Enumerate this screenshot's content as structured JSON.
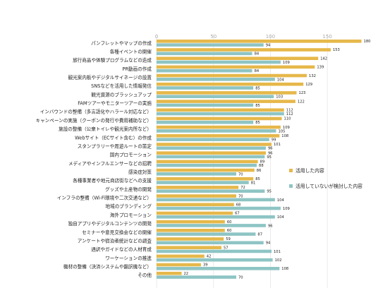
{
  "chart_data": {
    "type": "bar",
    "orientation": "horizontal",
    "xlim": [
      0,
      180
    ],
    "xticks": [
      0,
      50,
      100,
      150
    ],
    "grid": true,
    "legend_position": "right",
    "categories": [
      "パンフレットやマップの作成",
      "各種イベントの開催",
      "旅行商品や体験プログラムなどの造成",
      "PR動画の作成",
      "観光案内板やデジタルサイネージの設置",
      "SNSなどを活用した情報発信",
      "観光資源のブラッシュアップ",
      "FAMツアーやモニターツアーの実施",
      "インバウンドの整備（多言語化やハラール対応など）",
      "キャンペーンの実施（クーポンの発行や費用補助など）",
      "施設の整備（公衆トイレや観光案内所など）",
      "Webサイト（ECサイト含む）の作成",
      "スタンプラリーや周遊ルートの策定",
      "国内プロモーション",
      "メディアやインフルエンサーなどの招聘",
      "感染症対策",
      "各種事業者や地元商店街などへの支援",
      "グッズや土産物の開発",
      "インフラの整備（Wi-Fi環境や二次交通など）",
      "地域のブランディング",
      "海外プロモーション",
      "独自アプリやデジタルコンテンツの開発",
      "セミナーや意見交換会などの開催",
      "アンケートや宿泊者統計などの調査",
      "通訳やガイドなどの人材育成",
      "ワーケーションの推進",
      "機材の整備（決済システムや翻訳機など）",
      "その他"
    ],
    "series": [
      {
        "name": "活用した内容",
        "color": "#E6B84A",
        "values": [
          180,
          153,
          142,
          139,
          132,
          129,
          123,
          122,
          112,
          110,
          109,
          108,
          101,
          96,
          89,
          86,
          85,
          72,
          70,
          68,
          67,
          60,
          60,
          59,
          57,
          42,
          39,
          22
        ],
        "labels": [
          "180",
          "153",
          "142",
          "139",
          "132",
          "129",
          "123",
          "122",
          "112",
          "110",
          "109",
          "108",
          "101",
          "96",
          "89",
          "86",
          "85",
          "72",
          "70",
          "68",
          "67",
          "60",
          "60",
          "59",
          "57",
          "42",
          "39",
          "22"
        ]
      },
      {
        "name": "活用していないが検討した内容",
        "color": "#8EC4C4",
        "values": [
          94,
          84,
          109,
          84,
          104,
          85,
          103,
          85,
          112,
          85,
          105,
          99,
          96,
          95,
          88,
          70,
          81,
          95,
          104,
          109,
          104,
          96,
          87,
          94,
          101,
          102,
          108,
          70
        ],
        "labels": [
          "94",
          "84",
          "109",
          "84",
          "104",
          "85",
          "103",
          "85",
          "112",
          "85",
          "105",
          "99",
          "96",
          "95",
          "88",
          "70",
          "81",
          "95",
          "104",
          "109",
          "104",
          "96",
          "87",
          "94",
          "101",
          "102",
          "108",
          "70"
        ]
      }
    ]
  }
}
